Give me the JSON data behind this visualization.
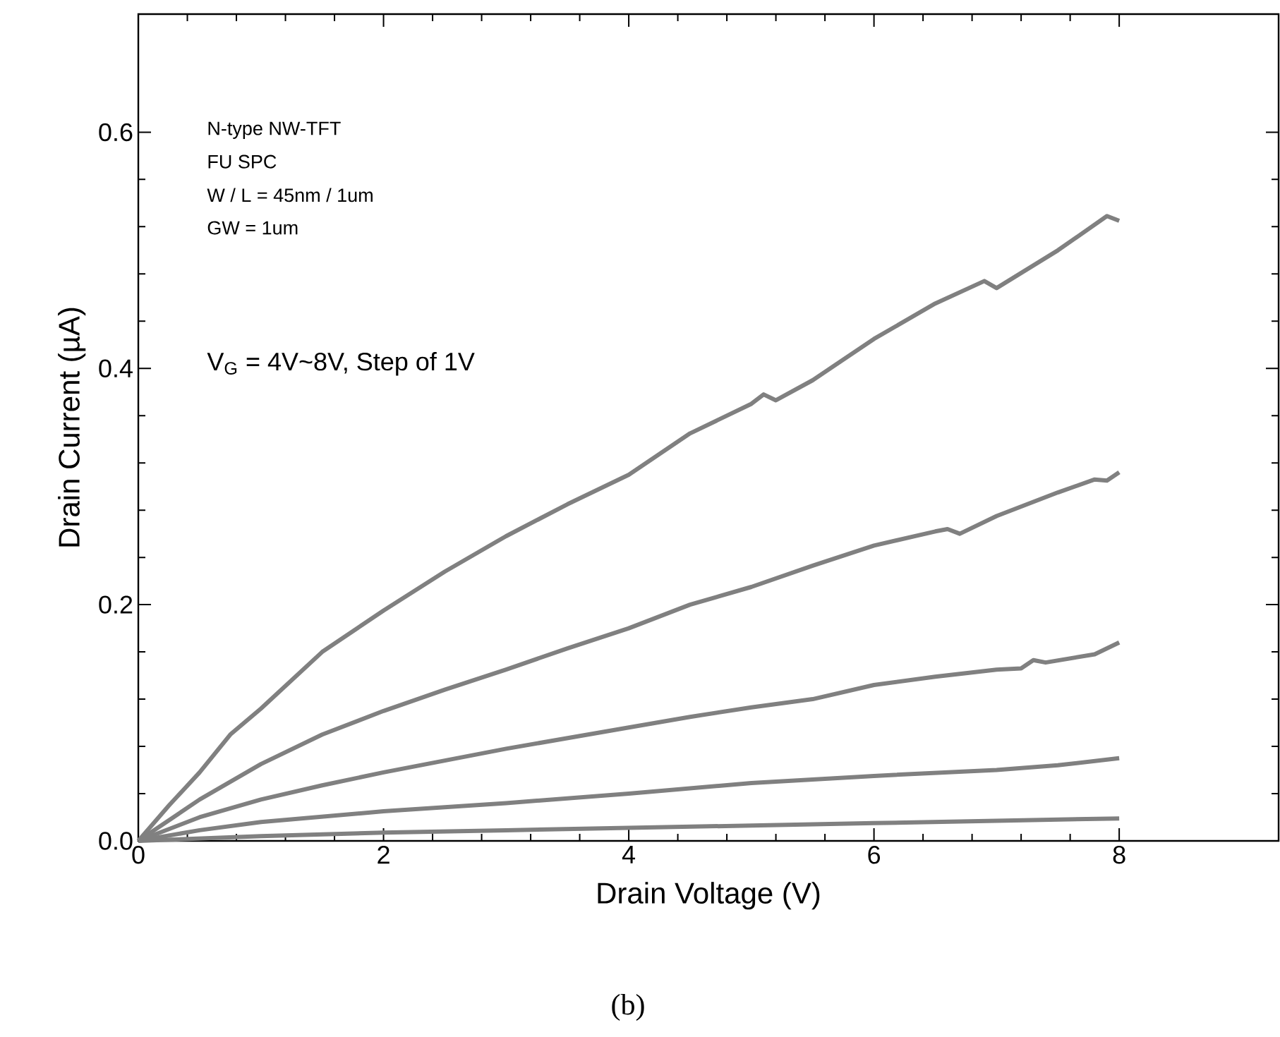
{
  "chart_data": {
    "type": "line",
    "xlabel": "Drain Voltage (V)",
    "ylabel": "Drain Current (µA)",
    "xlim": [
      0,
      9.3
    ],
    "ylim": [
      0,
      0.7
    ],
    "xticks": [
      0,
      2,
      4,
      6,
      8
    ],
    "yticks": [
      {
        "value": 0,
        "label": "0.0"
      },
      0.2,
      0.4,
      0.6
    ],
    "annotations": [
      "N-type NW-TFT",
      "FU SPC",
      "W / L =  45nm / 1um",
      "GW = 1um",
      "V$_{G}$ = 4V~8V, Step of 1V",
      "(b)"
    ],
    "marker": "none",
    "line_style": "solid",
    "series": [
      {
        "color": "#808080",
        "x": [
          0,
          1,
          2,
          3,
          4,
          5,
          6,
          7,
          8
        ],
        "values": [
          0,
          0.004,
          0.007,
          0.009,
          0.011,
          0.013,
          0.015,
          0.017,
          0.019
        ]
      },
      {
        "color": "#808080",
        "x": [
          0,
          0.5,
          1,
          2,
          3,
          4,
          5,
          6,
          7,
          7.5,
          8
        ],
        "values": [
          0,
          0.009,
          0.016,
          0.025,
          0.032,
          0.04,
          0.049,
          0.055,
          0.06,
          0.064,
          0.07
        ]
      },
      {
        "color": "#808080",
        "x": [
          0,
          0.5,
          1,
          1.5,
          2,
          2.5,
          3,
          3.5,
          4,
          4.5,
          5,
          5.5,
          6,
          6.5,
          7,
          7.2,
          7.3,
          7.4,
          7.8,
          8
        ],
        "values": [
          0,
          0.02,
          0.035,
          0.047,
          0.058,
          0.068,
          0.078,
          0.087,
          0.096,
          0.105,
          0.113,
          0.12,
          0.132,
          0.139,
          0.145,
          0.146,
          0.153,
          0.151,
          0.158,
          0.168
        ]
      },
      {
        "color": "#808080",
        "x": [
          0,
          0.5,
          1,
          1.5,
          2,
          2.5,
          3,
          3.5,
          4,
          4.5,
          5,
          5.5,
          6,
          6.5,
          6.6,
          6.7,
          7,
          7.5,
          7.8,
          7.9,
          8
        ],
        "values": [
          0,
          0.035,
          0.065,
          0.09,
          0.11,
          0.128,
          0.145,
          0.163,
          0.18,
          0.2,
          0.215,
          0.233,
          0.25,
          0.262,
          0.264,
          0.26,
          0.275,
          0.295,
          0.306,
          0.305,
          0.312
        ]
      },
      {
        "color": "#808080",
        "x": [
          0,
          0.25,
          0.5,
          0.75,
          1,
          1.5,
          2,
          2.5,
          3,
          3.5,
          4,
          4.5,
          5,
          5.1,
          5.2,
          5.5,
          6,
          6.5,
          6.9,
          7,
          7.5,
          7.9,
          8
        ],
        "values": [
          0,
          0.03,
          0.058,
          0.09,
          0.112,
          0.16,
          0.195,
          0.228,
          0.258,
          0.285,
          0.31,
          0.345,
          0.37,
          0.378,
          0.373,
          0.39,
          0.425,
          0.455,
          0.474,
          0.468,
          0.5,
          0.529,
          0.525
        ]
      }
    ]
  }
}
